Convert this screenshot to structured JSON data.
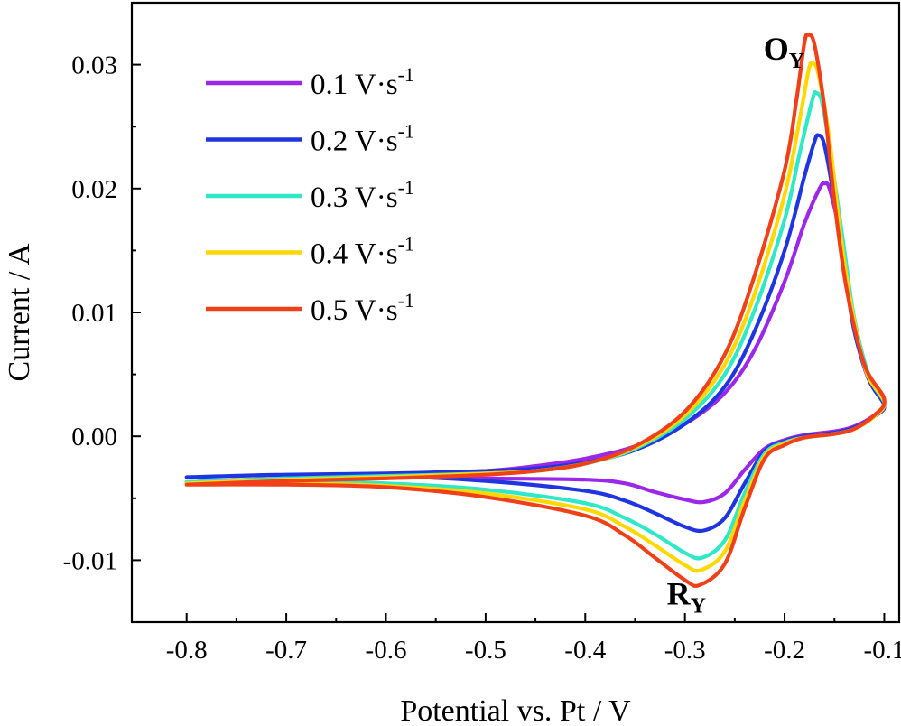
{
  "chart_data": {
    "type": "line",
    "title": "",
    "xlabel": "Potential vs. Pt / V",
    "ylabel": "Current / A",
    "xlim": [
      -0.855,
      -0.085
    ],
    "ylim": [
      -0.015,
      0.035
    ],
    "xticks": [
      -0.8,
      -0.7,
      -0.6,
      -0.5,
      -0.4,
      -0.3,
      -0.2,
      -0.1
    ],
    "xtick_labels": [
      "-0.8",
      "-0.7",
      "-0.6",
      "-0.5",
      "-0.4",
      "-0.3",
      "-0.2",
      "-0.1"
    ],
    "yticks": [
      -0.01,
      0.0,
      0.01,
      0.02,
      0.03
    ],
    "ytick_labels": [
      "-0.01",
      "0.00",
      "0.01",
      "0.02",
      "0.03"
    ],
    "grid": false,
    "legend_position": "top-left",
    "legend_unit": "V·s",
    "legend_exponent": "-1",
    "annotations": [
      {
        "text": "O",
        "subscript": "Y",
        "x": -0.165,
        "y": 0.0313
      },
      {
        "text": "R",
        "subscript": "Y",
        "x": -0.262,
        "y": -0.0127
      }
    ],
    "series": [
      {
        "name": "0.1",
        "color": "#9b27e8",
        "oxidation_peak": [
          -0.16,
          0.0204
        ],
        "reduction_peak": [
          -0.281,
          -0.0053
        ],
        "anodic": [
          [
            -0.8,
            -0.0037
          ],
          [
            -0.7,
            -0.0035
          ],
          [
            -0.6,
            -0.0032
          ],
          [
            -0.5,
            -0.0028
          ],
          [
            -0.45,
            -0.0024
          ],
          [
            -0.4,
            -0.0018
          ],
          [
            -0.35,
            -0.0008
          ],
          [
            -0.3,
            0.001
          ],
          [
            -0.26,
            0.0035
          ],
          [
            -0.23,
            0.007
          ],
          [
            -0.2,
            0.0125
          ],
          [
            -0.18,
            0.0172
          ],
          [
            -0.165,
            0.02
          ],
          [
            -0.16,
            0.0204
          ],
          [
            -0.155,
            0.02
          ],
          [
            -0.145,
            0.0165
          ],
          [
            -0.135,
            0.011
          ],
          [
            -0.125,
            0.007
          ],
          [
            -0.115,
            0.0045
          ],
          [
            -0.1,
            0.0026
          ]
        ],
        "cathodic": [
          [
            -0.1,
            0.0026
          ],
          [
            -0.11,
            0.0017
          ],
          [
            -0.13,
            0.0008
          ],
          [
            -0.15,
            0.0004
          ],
          [
            -0.18,
            0.0001
          ],
          [
            -0.2,
            -0.0003
          ],
          [
            -0.22,
            -0.001
          ],
          [
            -0.24,
            -0.0027
          ],
          [
            -0.26,
            -0.0046
          ],
          [
            -0.281,
            -0.0053
          ],
          [
            -0.3,
            -0.0051
          ],
          [
            -0.33,
            -0.0045
          ],
          [
            -0.36,
            -0.0038
          ],
          [
            -0.4,
            -0.0035
          ],
          [
            -0.5,
            -0.0034
          ],
          [
            -0.6,
            -0.0033
          ],
          [
            -0.7,
            -0.0034
          ],
          [
            -0.8,
            -0.0037
          ]
        ]
      },
      {
        "name": "0.2",
        "color": "#1f35e0",
        "oxidation_peak": [
          -0.166,
          0.0243
        ],
        "reduction_peak": [
          -0.281,
          -0.0076
        ],
        "anodic": [
          [
            -0.8,
            -0.0033
          ],
          [
            -0.7,
            -0.0031
          ],
          [
            -0.6,
            -0.003
          ],
          [
            -0.5,
            -0.0028
          ],
          [
            -0.45,
            -0.0026
          ],
          [
            -0.4,
            -0.0021
          ],
          [
            -0.35,
            -0.0011
          ],
          [
            -0.3,
            0.001
          ],
          [
            -0.26,
            0.004
          ],
          [
            -0.23,
            0.0085
          ],
          [
            -0.2,
            0.015
          ],
          [
            -0.18,
            0.021
          ],
          [
            -0.17,
            0.0238
          ],
          [
            -0.166,
            0.0243
          ],
          [
            -0.16,
            0.0235
          ],
          [
            -0.15,
            0.019
          ],
          [
            -0.14,
            0.0135
          ],
          [
            -0.13,
            0.0085
          ],
          [
            -0.115,
            0.0045
          ],
          [
            -0.1,
            0.0025
          ]
        ],
        "cathodic": [
          [
            -0.1,
            0.0025
          ],
          [
            -0.11,
            0.0016
          ],
          [
            -0.13,
            0.0007
          ],
          [
            -0.15,
            0.0003
          ],
          [
            -0.18,
            0.0
          ],
          [
            -0.2,
            -0.0004
          ],
          [
            -0.22,
            -0.0012
          ],
          [
            -0.24,
            -0.0038
          ],
          [
            -0.26,
            -0.0066
          ],
          [
            -0.281,
            -0.0076
          ],
          [
            -0.3,
            -0.0073
          ],
          [
            -0.33,
            -0.0062
          ],
          [
            -0.36,
            -0.0052
          ],
          [
            -0.4,
            -0.0044
          ],
          [
            -0.5,
            -0.0036
          ],
          [
            -0.6,
            -0.0032
          ],
          [
            -0.7,
            -0.0031
          ],
          [
            -0.8,
            -0.0033
          ]
        ]
      },
      {
        "name": "0.3",
        "color": "#2fe8c8",
        "oxidation_peak": [
          -0.168,
          0.0277
        ],
        "reduction_peak": [
          -0.283,
          -0.0098
        ],
        "anodic": [
          [
            -0.8,
            -0.0037
          ],
          [
            -0.7,
            -0.0034
          ],
          [
            -0.6,
            -0.0032
          ],
          [
            -0.5,
            -0.003
          ],
          [
            -0.45,
            -0.0028
          ],
          [
            -0.4,
            -0.0022
          ],
          [
            -0.35,
            -0.001
          ],
          [
            -0.3,
            0.0014
          ],
          [
            -0.26,
            0.005
          ],
          [
            -0.23,
            0.0102
          ],
          [
            -0.2,
            0.0175
          ],
          [
            -0.185,
            0.0228
          ],
          [
            -0.172,
            0.0272
          ],
          [
            -0.168,
            0.0277
          ],
          [
            -0.162,
            0.0268
          ],
          [
            -0.152,
            0.0218
          ],
          [
            -0.14,
            0.015
          ],
          [
            -0.13,
            0.0095
          ],
          [
            -0.115,
            0.0048
          ],
          [
            -0.1,
            0.0027
          ]
        ],
        "cathodic": [
          [
            -0.1,
            0.0027
          ],
          [
            -0.11,
            0.0016
          ],
          [
            -0.13,
            0.0006
          ],
          [
            -0.15,
            0.0002
          ],
          [
            -0.18,
            -0.0001
          ],
          [
            -0.2,
            -0.0005
          ],
          [
            -0.22,
            -0.0014
          ],
          [
            -0.24,
            -0.0046
          ],
          [
            -0.26,
            -0.0084
          ],
          [
            -0.283,
            -0.0098
          ],
          [
            -0.3,
            -0.0094
          ],
          [
            -0.33,
            -0.0079
          ],
          [
            -0.36,
            -0.0066
          ],
          [
            -0.4,
            -0.0054
          ],
          [
            -0.5,
            -0.0043
          ],
          [
            -0.6,
            -0.0038
          ],
          [
            -0.7,
            -0.0037
          ],
          [
            -0.8,
            -0.0037
          ]
        ]
      },
      {
        "name": "0.4",
        "color": "#ffd800",
        "oxidation_peak": [
          -0.172,
          0.0301
        ],
        "reduction_peak": [
          -0.284,
          -0.0108
        ],
        "anodic": [
          [
            -0.8,
            -0.0038
          ],
          [
            -0.7,
            -0.0035
          ],
          [
            -0.6,
            -0.0033
          ],
          [
            -0.5,
            -0.003
          ],
          [
            -0.45,
            -0.0028
          ],
          [
            -0.4,
            -0.0022
          ],
          [
            -0.35,
            -0.0009
          ],
          [
            -0.3,
            0.0017
          ],
          [
            -0.26,
            0.0058
          ],
          [
            -0.23,
            0.0115
          ],
          [
            -0.2,
            0.0195
          ],
          [
            -0.185,
            0.0255
          ],
          [
            -0.176,
            0.0295
          ],
          [
            -0.172,
            0.0301
          ],
          [
            -0.166,
            0.0292
          ],
          [
            -0.155,
            0.024
          ],
          [
            -0.145,
            0.017
          ],
          [
            -0.133,
            0.0105
          ],
          [
            -0.118,
            0.0052
          ],
          [
            -0.1,
            0.0028
          ]
        ],
        "cathodic": [
          [
            -0.1,
            0.0028
          ],
          [
            -0.11,
            0.0016
          ],
          [
            -0.13,
            0.0006
          ],
          [
            -0.15,
            0.0002
          ],
          [
            -0.18,
            -0.0001
          ],
          [
            -0.2,
            -0.0006
          ],
          [
            -0.22,
            -0.0016
          ],
          [
            -0.24,
            -0.0052
          ],
          [
            -0.26,
            -0.0093
          ],
          [
            -0.284,
            -0.0108
          ],
          [
            -0.3,
            -0.0104
          ],
          [
            -0.33,
            -0.0088
          ],
          [
            -0.36,
            -0.0073
          ],
          [
            -0.4,
            -0.0059
          ],
          [
            -0.5,
            -0.0046
          ],
          [
            -0.6,
            -0.004
          ],
          [
            -0.7,
            -0.0038
          ],
          [
            -0.8,
            -0.0038
          ]
        ]
      },
      {
        "name": "0.5",
        "color": "#f0401a",
        "oxidation_peak": [
          -0.176,
          0.0324
        ],
        "reduction_peak": [
          -0.285,
          -0.012
        ],
        "anodic": [
          [
            -0.8,
            -0.0039
          ],
          [
            -0.7,
            -0.0036
          ],
          [
            -0.6,
            -0.0034
          ],
          [
            -0.5,
            -0.0031
          ],
          [
            -0.45,
            -0.0028
          ],
          [
            -0.4,
            -0.0022
          ],
          [
            -0.35,
            -0.0008
          ],
          [
            -0.3,
            0.002
          ],
          [
            -0.26,
            0.0066
          ],
          [
            -0.23,
            0.013
          ],
          [
            -0.2,
            0.0215
          ],
          [
            -0.188,
            0.0272
          ],
          [
            -0.18,
            0.0318
          ],
          [
            -0.176,
            0.0324
          ],
          [
            -0.17,
            0.0316
          ],
          [
            -0.16,
            0.0265
          ],
          [
            -0.15,
            0.019
          ],
          [
            -0.138,
            0.012
          ],
          [
            -0.12,
            0.0058
          ],
          [
            -0.1,
            0.003
          ]
        ],
        "cathodic": [
          [
            -0.1,
            0.003
          ],
          [
            -0.11,
            0.0017
          ],
          [
            -0.13,
            0.0006
          ],
          [
            -0.15,
            0.0002
          ],
          [
            -0.18,
            -0.0001
          ],
          [
            -0.2,
            -0.0007
          ],
          [
            -0.22,
            -0.0018
          ],
          [
            -0.24,
            -0.0058
          ],
          [
            -0.26,
            -0.0103
          ],
          [
            -0.285,
            -0.012
          ],
          [
            -0.3,
            -0.0116
          ],
          [
            -0.33,
            -0.0098
          ],
          [
            -0.36,
            -0.008
          ],
          [
            -0.4,
            -0.0064
          ],
          [
            -0.5,
            -0.0049
          ],
          [
            -0.6,
            -0.0041
          ],
          [
            -0.7,
            -0.0039
          ],
          [
            -0.8,
            -0.0039
          ]
        ]
      }
    ]
  }
}
